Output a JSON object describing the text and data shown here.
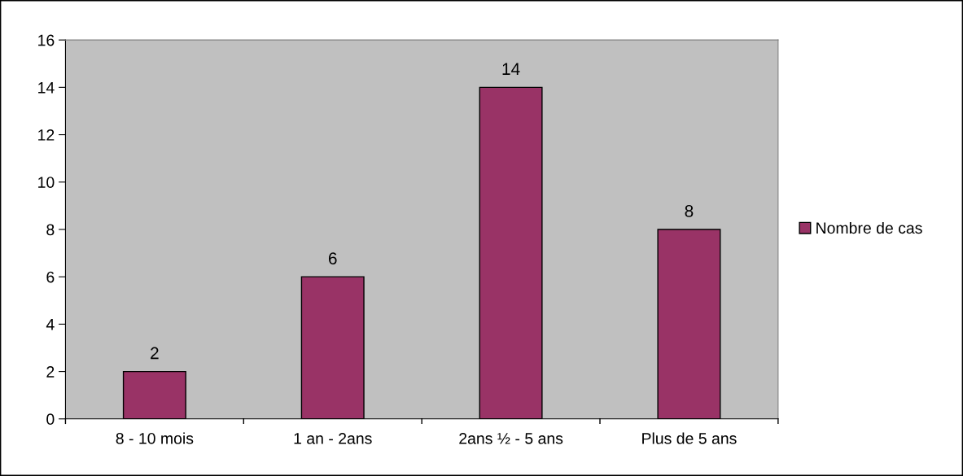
{
  "chart_data": {
    "type": "bar",
    "categories": [
      "8 - 10 mois",
      "1 an - 2ans",
      "2ans ½ - 5 ans",
      "Plus de 5 ans"
    ],
    "series": [
      {
        "name": "Nombre de cas",
        "color": "#993366",
        "values": [
          2,
          6,
          14,
          8
        ]
      }
    ],
    "ylim": [
      0,
      16
    ],
    "yticks": [
      0,
      2,
      4,
      6,
      8,
      10,
      12,
      14,
      16
    ],
    "data_labels": true,
    "grid": false,
    "legend": "right"
  }
}
